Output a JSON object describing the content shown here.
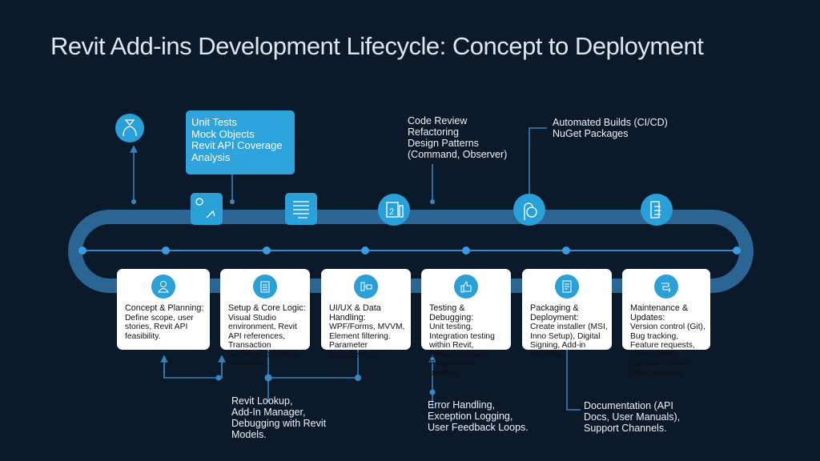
{
  "title": "Revit Add-ins Development Lifecycle: Concept to Deployment",
  "colors": {
    "background": "#0b1a2b",
    "track": "#2b6594",
    "accent": "#2aa0d8",
    "card": "#ffffff"
  },
  "top_notes": {
    "testing_box": "Unit Tests\nMock Objects\nRevit API Coverage\nAnalysis",
    "code_review": "Code Review\nRefactoring\nDesign Patterns\n(Command, Observer)",
    "builds": "Automated Builds (CI/CD)\nNuGet Packages"
  },
  "top_icons": [
    "user-scan-icon",
    "gear-tools-icon",
    "document-lines-icon",
    "calendar-icon",
    "pipeline-icon",
    "building-icon"
  ],
  "stages": [
    {
      "heading": "Concept & Planning:",
      "body": "Define scope, user stories, Revit API feasibility.",
      "icon": "user-icon"
    },
    {
      "heading": "Setup & Core Logic:",
      "body": "Visual Studio environment, Revit API references, Transaction handling, Database interaction.",
      "icon": "clipboard-icon"
    },
    {
      "heading": "UI/UX & Data Handling:",
      "body": "WPF/Forms, MVVM, Element filtering. Parameter management.",
      "icon": "connector-icon"
    },
    {
      "heading": "Testing & Debugging:",
      "body": "Unit testing, Integration testing within Revit, Debugging tools, Performance profiling.",
      "icon": "thumbs-up-icon"
    },
    {
      "heading": "Packaging & Deployment:",
      "body": "Create installer (MSI, Inno Setup), Digital Signing, Add-in Manifest.",
      "icon": "document-icon"
    },
    {
      "heading": "Maintenance & Updates:",
      "body": "Version control (Git), Bug tracking, Feature requests, Compatibility updates for new Revit versions.",
      "icon": "update-icon"
    }
  ],
  "bottom_notes": {
    "tools": "Revit Lookup,\nAdd-In Manager,\nDebugging with Revit\nModels.",
    "errors": "Error Handling,\nException Logging,\nUser Feedback Loops.",
    "docs": "Documentation (API\nDocs, User Manuals),\nSupport Channels."
  }
}
